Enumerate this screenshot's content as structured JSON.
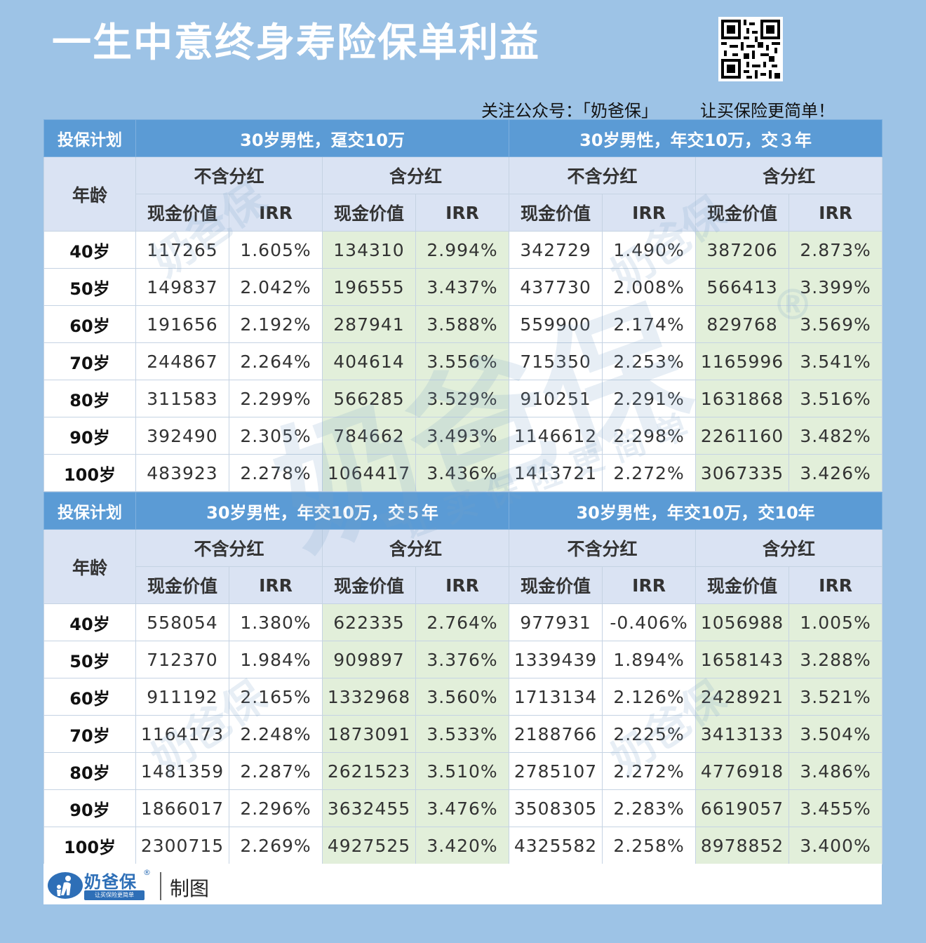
{
  "title": "一生中意终身寿险保单利益",
  "qr_code": "qr-code",
  "follow": {
    "text": "关注公众号：「奶爸保」",
    "slogan": "让买保险更简单！"
  },
  "labels": {
    "plan": "投保计划",
    "age": "年龄",
    "no_dividend": "不含分红",
    "with_dividend": "含分红",
    "cash_value": "现金价值",
    "irr": "IRR"
  },
  "tables": [
    {
      "plans": [
        "30岁男性，趸交10万",
        "30岁男性，年交10万，交３年"
      ],
      "rows": [
        {
          "age": "40岁",
          "p1_nd_cv": "117265",
          "p1_nd_irr": "1.605%",
          "p1_d_cv": "134310",
          "p1_d_irr": "2.994%",
          "p2_nd_cv": "342729",
          "p2_nd_irr": "1.490%",
          "p2_d_cv": "387206",
          "p2_d_irr": "2.873%"
        },
        {
          "age": "50岁",
          "p1_nd_cv": "149837",
          "p1_nd_irr": "2.042%",
          "p1_d_cv": "196555",
          "p1_d_irr": "3.437%",
          "p2_nd_cv": "437730",
          "p2_nd_irr": "2.008%",
          "p2_d_cv": "566413",
          "p2_d_irr": "3.399%"
        },
        {
          "age": "60岁",
          "p1_nd_cv": "191656",
          "p1_nd_irr": "2.192%",
          "p1_d_cv": "287941",
          "p1_d_irr": "3.588%",
          "p2_nd_cv": "559900",
          "p2_nd_irr": "2.174%",
          "p2_d_cv": "829768",
          "p2_d_irr": "3.569%"
        },
        {
          "age": "70岁",
          "p1_nd_cv": "244867",
          "p1_nd_irr": "2.264%",
          "p1_d_cv": "404614",
          "p1_d_irr": "3.556%",
          "p2_nd_cv": "715350",
          "p2_nd_irr": "2.253%",
          "p2_d_cv": "1165996",
          "p2_d_irr": "3.541%"
        },
        {
          "age": "80岁",
          "p1_nd_cv": "311583",
          "p1_nd_irr": "2.299%",
          "p1_d_cv": "566285",
          "p1_d_irr": "3.529%",
          "p2_nd_cv": "910251",
          "p2_nd_irr": "2.291%",
          "p2_d_cv": "1631868",
          "p2_d_irr": "3.516%"
        },
        {
          "age": "90岁",
          "p1_nd_cv": "392490",
          "p1_nd_irr": "2.305%",
          "p1_d_cv": "784662",
          "p1_d_irr": "3.493%",
          "p2_nd_cv": "1146612",
          "p2_nd_irr": "2.298%",
          "p2_d_cv": "2261160",
          "p2_d_irr": "3.482%"
        },
        {
          "age": "100岁",
          "p1_nd_cv": "483923",
          "p1_nd_irr": "2.278%",
          "p1_d_cv": "1064417",
          "p1_d_irr": "3.436%",
          "p2_nd_cv": "1413721",
          "p2_nd_irr": "2.272%",
          "p2_d_cv": "3067335",
          "p2_d_irr": "3.426%"
        }
      ]
    },
    {
      "plans": [
        "30岁男性，年交10万，交５年",
        "30岁男性，年交10万，交10年"
      ],
      "rows": [
        {
          "age": "40岁",
          "p1_nd_cv": "558054",
          "p1_nd_irr": "1.380%",
          "p1_d_cv": "622335",
          "p1_d_irr": "2.764%",
          "p2_nd_cv": "977931",
          "p2_nd_irr": "-0.406%",
          "p2_d_cv": "1056988",
          "p2_d_irr": "1.005%"
        },
        {
          "age": "50岁",
          "p1_nd_cv": "712370",
          "p1_nd_irr": "1.984%",
          "p1_d_cv": "909897",
          "p1_d_irr": "3.376%",
          "p2_nd_cv": "1339439",
          "p2_nd_irr": "1.894%",
          "p2_d_cv": "1658143",
          "p2_d_irr": "3.288%"
        },
        {
          "age": "60岁",
          "p1_nd_cv": "911192",
          "p1_nd_irr": "2.165%",
          "p1_d_cv": "1332968",
          "p1_d_irr": "3.560%",
          "p2_nd_cv": "1713134",
          "p2_nd_irr": "2.126%",
          "p2_d_cv": "2428921",
          "p2_d_irr": "3.521%"
        },
        {
          "age": "70岁",
          "p1_nd_cv": "1164173",
          "p1_nd_irr": "2.248%",
          "p1_d_cv": "1873091",
          "p1_d_irr": "3.533%",
          "p2_nd_cv": "2188766",
          "p2_nd_irr": "2.225%",
          "p2_d_cv": "3413133",
          "p2_d_irr": "3.504%"
        },
        {
          "age": "80岁",
          "p1_nd_cv": "1481359",
          "p1_nd_irr": "2.287%",
          "p1_d_cv": "2621523",
          "p1_d_irr": "3.510%",
          "p2_nd_cv": "2785107",
          "p2_nd_irr": "2.272%",
          "p2_d_cv": "4776918",
          "p2_d_irr": "3.486%"
        },
        {
          "age": "90岁",
          "p1_nd_cv": "1866017",
          "p1_nd_irr": "2.296%",
          "p1_d_cv": "3632455",
          "p1_d_irr": "3.476%",
          "p2_nd_cv": "3508305",
          "p2_nd_irr": "2.283%",
          "p2_d_cv": "6619057",
          "p2_d_irr": "3.455%"
        },
        {
          "age": "100岁",
          "p1_nd_cv": "2300715",
          "p1_nd_irr": "2.269%",
          "p1_d_cv": "4927525",
          "p1_d_irr": "3.420%",
          "p2_nd_cv": "4325582",
          "p2_nd_irr": "2.258%",
          "p2_d_cv": "8978852",
          "p2_d_irr": "3.400%"
        }
      ]
    }
  ],
  "footer": {
    "logo_name": "奶爸保",
    "logo_tagline": "让买保险更简单",
    "registered": "®",
    "made_by": "制图"
  },
  "watermark": {
    "brand": "奶爸保",
    "slogan": "让买保险更简单",
    "registered": "®"
  },
  "colors": {
    "background": "#9dc3e6",
    "header_blue": "#5b9bd5",
    "subheader": "#dae3f3",
    "dividend_green": "#e2efda",
    "label_red": "#e00000",
    "brand_blue": "#2e6fb7"
  }
}
